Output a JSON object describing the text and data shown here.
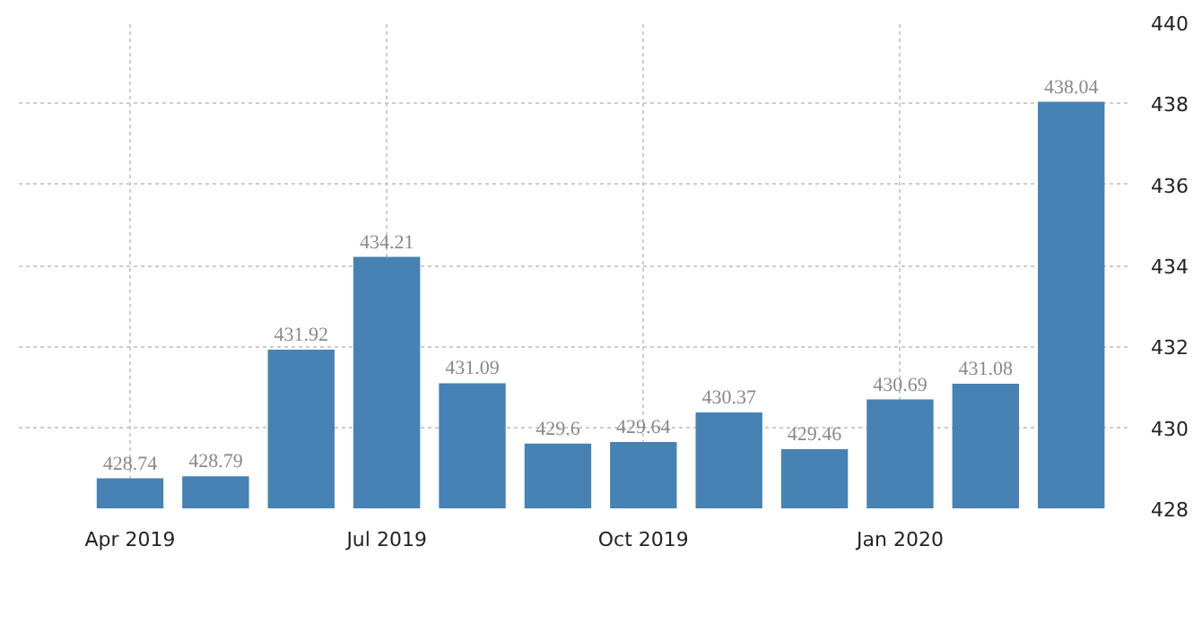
{
  "chart_data": {
    "type": "bar",
    "categories": [
      "Apr 2019",
      null,
      null,
      "Jul 2019",
      null,
      null,
      "Oct 2019",
      null,
      null,
      "Jan 2020",
      null,
      null
    ],
    "values": [
      428.74,
      428.79,
      431.92,
      434.21,
      431.09,
      429.6,
      429.64,
      430.37,
      429.46,
      430.69,
      431.08,
      438.04
    ],
    "color": "#4682b4",
    "ylim": [
      428,
      440
    ],
    "yticks": [
      428,
      430,
      432,
      434,
      436,
      438,
      440
    ],
    "grid": true,
    "data_labels": true
  }
}
